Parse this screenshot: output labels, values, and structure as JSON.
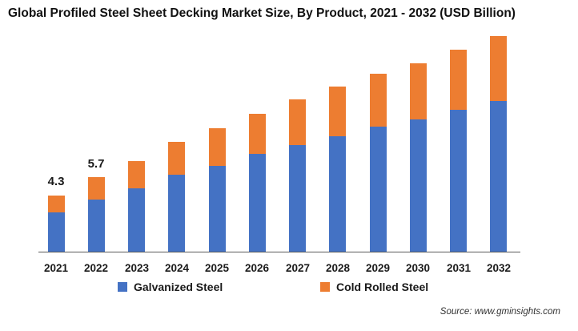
{
  "title": "Global Profiled Steel Sheet Decking Market Size, By Product,  2021 - 2032 (USD Billion)",
  "source": "Source: www.gminsights.com",
  "colors": {
    "galvanized_blue": "#4472C4",
    "cold_rolled_orange": "#ED7D31",
    "axis_line": "#595959",
    "text": "#1a1a1a"
  },
  "chart_data": {
    "type": "bar",
    "stacked": true,
    "title": "Global Profiled Steel Sheet Decking Market Size, By Product,  2021 - 2032 (USD Billion)",
    "xlabel": "",
    "ylabel": "USD Billion",
    "categories": [
      "2021",
      "2022",
      "2023",
      "2024",
      "2025",
      "2026",
      "2027",
      "2028",
      "2029",
      "2030",
      "2031",
      "2032"
    ],
    "series": [
      {
        "name": "Galvanized Steel",
        "color": "#4472C4",
        "values": [
          3.0,
          4.0,
          4.9,
          5.9,
          6.6,
          7.5,
          8.2,
          8.9,
          9.6,
          10.2,
          10.9,
          11.6
        ]
      },
      {
        "name": "Cold Rolled Steel",
        "color": "#ED7D31",
        "values": [
          1.3,
          1.7,
          2.1,
          2.5,
          2.9,
          3.1,
          3.5,
          3.8,
          4.1,
          4.3,
          4.6,
          5.0
        ]
      }
    ],
    "totals": [
      4.3,
      5.7,
      7.0,
      8.4,
      9.5,
      10.6,
      11.7,
      12.7,
      13.7,
      14.5,
      15.5,
      16.6
    ],
    "data_labels": [
      {
        "index": 0,
        "text": "4.3"
      },
      {
        "index": 1,
        "text": "5.7"
      }
    ],
    "ylim": [
      0,
      17.5
    ],
    "grid": false,
    "legend_position": "bottom",
    "x_axis_visible": true,
    "y_axis_visible": false
  },
  "legend": {
    "items": [
      {
        "label": "Galvanized Steel",
        "color": "#4472C4"
      },
      {
        "label": "Cold Rolled Steel",
        "color": "#ED7D31"
      }
    ]
  }
}
